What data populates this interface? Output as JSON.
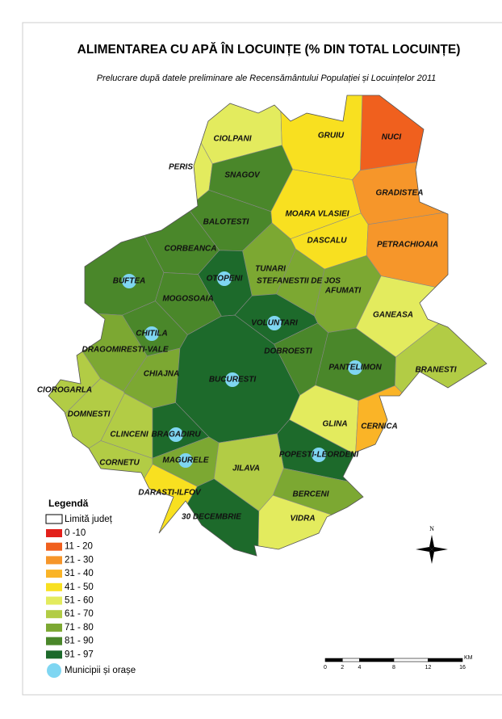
{
  "header": {
    "title": "ALIMENTAREA CU APĂ ÎN LOCUINȚE (% DIN TOTAL LOCUINȚE)",
    "subtitle": "Prelucrare după datele preliminare ale Recensământului Populației și Locuințelor 2011"
  },
  "legend": {
    "title": "Legendă",
    "boundary": "Limită județ",
    "towns": "Municipii și orașe",
    "town_color": "#7fd6f2",
    "classes": [
      {
        "label": "0 -10",
        "color": "#e3201b"
      },
      {
        "label": "11 - 20",
        "color": "#f0601e"
      },
      {
        "label": "21 - 30",
        "color": "#f6962a"
      },
      {
        "label": "31 - 40",
        "color": "#fab427"
      },
      {
        "label": "41 - 50",
        "color": "#f8e020"
      },
      {
        "label": "51 - 60",
        "color": "#e3eb5e"
      },
      {
        "label": "61 - 70",
        "color": "#b2cc45"
      },
      {
        "label": "71 - 80",
        "color": "#7ca832"
      },
      {
        "label": "81 - 90",
        "color": "#4a872a"
      },
      {
        "label": "91 - 97",
        "color": "#1d6a2b"
      }
    ]
  },
  "regions": [
    {
      "name": "CIOLPANI",
      "color": "#e3eb5e"
    },
    {
      "name": "NUCI",
      "color": "#f0601e"
    },
    {
      "name": "GRUIU",
      "color": "#f8e020"
    },
    {
      "name": "PERIS",
      "color": "#e3eb5e"
    },
    {
      "name": "SNAGOV",
      "color": "#4a872a"
    },
    {
      "name": "GRADISTEA",
      "color": "#f6962a"
    },
    {
      "name": "BALOTESTI",
      "color": "#4a872a"
    },
    {
      "name": "MOARA VLASIEI",
      "color": "#f8e020"
    },
    {
      "name": "DASCALU",
      "color": "#f8e020"
    },
    {
      "name": "PETRACHIOAIA",
      "color": "#f6962a"
    },
    {
      "name": "CORBEANCA",
      "color": "#4a872a"
    },
    {
      "name": "TUNARI",
      "color": "#7ca832"
    },
    {
      "name": "BUFTEA",
      "color": "#4a872a",
      "town": true
    },
    {
      "name": "OTOPENI",
      "color": "#1d6a2b",
      "town": true
    },
    {
      "name": "STEFANESTII DE JOS",
      "color": "#7ca832"
    },
    {
      "name": "AFUMATI",
      "color": "#7ca832"
    },
    {
      "name": "MOGOSOAIA",
      "color": "#4a872a"
    },
    {
      "name": "GANEASA",
      "color": "#e3eb5e"
    },
    {
      "name": "VOLUNTARI",
      "color": "#1d6a2b",
      "town": true
    },
    {
      "name": "CHITILA",
      "color": "#4a872a",
      "town": true
    },
    {
      "name": "DRAGOMIRESTI-VALE",
      "color": "#7ca832"
    },
    {
      "name": "DOBROESTI",
      "color": "#4a872a"
    },
    {
      "name": "PANTELIMON",
      "color": "#4a872a",
      "town": true
    },
    {
      "name": "BRANESTI",
      "color": "#b2cc45"
    },
    {
      "name": "CHIAJNA",
      "color": "#7ca832"
    },
    {
      "name": "BUCURESTI",
      "color": "#1d6a2b",
      "town": true
    },
    {
      "name": "CIOROGARLA",
      "color": "#b2cc45"
    },
    {
      "name": "DOMNESTI",
      "color": "#b2cc45"
    },
    {
      "name": "GLINA",
      "color": "#e3eb5e"
    },
    {
      "name": "CERNICA",
      "color": "#fab427"
    },
    {
      "name": "CLINCENI",
      "color": "#b2cc45"
    },
    {
      "name": "BRAGADIRU",
      "color": "#1d6a2b",
      "town": true
    },
    {
      "name": "POPESTI-LEORDENI",
      "color": "#1d6a2b",
      "town": true
    },
    {
      "name": "CORNETU",
      "color": "#b2cc45"
    },
    {
      "name": "MAGURELE",
      "color": "#7ca832",
      "town": true
    },
    {
      "name": "JILAVA",
      "color": "#b2cc45"
    },
    {
      "name": "DARASTI-ILFOV",
      "color": "#f8e020"
    },
    {
      "name": "BERCENI",
      "color": "#7ca832"
    },
    {
      "name": "30 DECEMBRIE",
      "color": "#1d6a2b"
    },
    {
      "name": "VIDRA",
      "color": "#e3eb5e"
    }
  ],
  "compass": {
    "label": "N"
  },
  "scale": {
    "ticks": [
      0,
      2,
      4,
      8,
      12,
      16
    ],
    "unit": "KM"
  }
}
